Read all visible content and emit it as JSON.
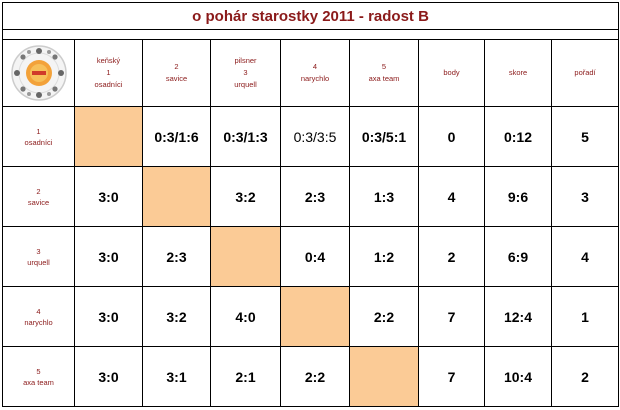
{
  "title": "o pohár starostky 2011 - radost B",
  "columns": [
    {
      "top": "keňský",
      "num": "1",
      "name": "osadníci"
    },
    {
      "top": "",
      "num": "2",
      "name": "savice"
    },
    {
      "top": "pilsner",
      "num": "3",
      "name": "urquell"
    },
    {
      "top": "",
      "num": "4",
      "name": "narychlo"
    },
    {
      "top": "",
      "num": "5",
      "name": "axa team"
    }
  ],
  "summary_headers": {
    "body": "body",
    "skore": "skore",
    "poradi": "pořadí"
  },
  "rows": [
    {
      "num": "1",
      "name": "osadníci",
      "results": [
        "",
        "0:3/1:6",
        "0:3/1:3",
        "0:3/3:5",
        "0:3/5:1"
      ],
      "body": "0",
      "skore": "0:12",
      "poradi": "5"
    },
    {
      "num": "2",
      "name": "savice",
      "results": [
        "3:0",
        "",
        "3:2",
        "2:3",
        "1:3"
      ],
      "body": "4",
      "skore": "9:6",
      "poradi": "3"
    },
    {
      "num": "3",
      "name": "urquell",
      "results": [
        "3:0",
        "2:3",
        "",
        "0:4",
        "1:2"
      ],
      "body": "2",
      "skore": "6:9",
      "poradi": "4"
    },
    {
      "num": "4",
      "name": "narychlo",
      "results": [
        "3:0",
        "3:2",
        "4:0",
        "",
        "2:2"
      ],
      "body": "7",
      "skore": "12:4",
      "poradi": "1"
    },
    {
      "num": "5",
      "name": "axa team",
      "results": [
        "3:0",
        "3:1",
        "2:1",
        "2:2",
        ""
      ],
      "body": "7",
      "skore": "10:4",
      "poradi": "2"
    }
  ],
  "colors": {
    "title": "#8b1a1a",
    "diagonal": "#fbcb96"
  },
  "icons": {
    "logo": "tournament-logo-icon"
  }
}
